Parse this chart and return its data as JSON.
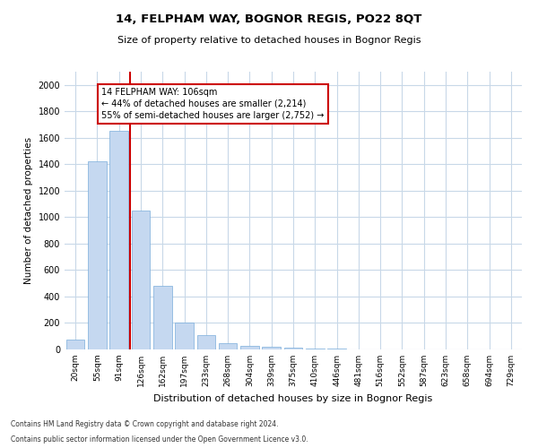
{
  "title": "14, FELPHAM WAY, BOGNOR REGIS, PO22 8QT",
  "subtitle": "Size of property relative to detached houses in Bognor Regis",
  "xlabel": "Distribution of detached houses by size in Bognor Regis",
  "ylabel": "Number of detached properties",
  "categories": [
    "20sqm",
    "55sqm",
    "91sqm",
    "126sqm",
    "162sqm",
    "197sqm",
    "233sqm",
    "268sqm",
    "304sqm",
    "339sqm",
    "375sqm",
    "410sqm",
    "446sqm",
    "481sqm",
    "516sqm",
    "552sqm",
    "587sqm",
    "623sqm",
    "658sqm",
    "694sqm",
    "729sqm"
  ],
  "values": [
    75,
    1420,
    1650,
    1050,
    480,
    200,
    110,
    45,
    30,
    20,
    15,
    10,
    5,
    3,
    2,
    2,
    1,
    1,
    1,
    0,
    0
  ],
  "bar_color": "#c5d8f0",
  "bar_edge_color": "#7aaddb",
  "bar_width": 0.85,
  "vline_color": "#cc0000",
  "ylim": [
    0,
    2100
  ],
  "yticks": [
    0,
    200,
    400,
    600,
    800,
    1000,
    1200,
    1400,
    1600,
    1800,
    2000
  ],
  "annotation_text": "14 FELPHAM WAY: 106sqm\n← 44% of detached houses are smaller (2,214)\n55% of semi-detached houses are larger (2,752) →",
  "annotation_box_color": "#ffffff",
  "annotation_box_edge_color": "#cc0000",
  "bg_color": "#ffffff",
  "grid_color": "#c8d8e8",
  "footer1": "Contains HM Land Registry data © Crown copyright and database right 2024.",
  "footer2": "Contains public sector information licensed under the Open Government Licence v3.0."
}
